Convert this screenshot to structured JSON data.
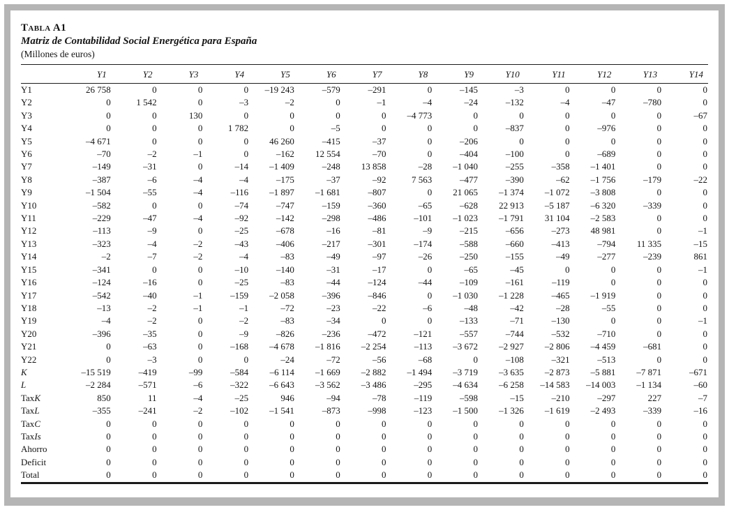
{
  "page": {
    "table_label": "Tabla A1",
    "title": "Matriz de Contabilidad Social Energética para España",
    "subtitle": "(Millones de euros)"
  },
  "table": {
    "columns": [
      "Y1",
      "Y2",
      "Y3",
      "Y4",
      "Y5",
      "Y6",
      "Y7",
      "Y8",
      "Y9",
      "Y10",
      "Y11",
      "Y12",
      "Y13",
      "Y14"
    ],
    "rows": [
      {
        "label": "Y1",
        "label_it": "",
        "values": [
          "26 758",
          "0",
          "0",
          "0",
          "–19 243",
          "–579",
          "–291",
          "0",
          "–145",
          "–3",
          "0",
          "0",
          "0",
          "0"
        ]
      },
      {
        "label": "Y2",
        "label_it": "",
        "values": [
          "0",
          "1 542",
          "0",
          "–3",
          "–2",
          "0",
          "–1",
          "–4",
          "–24",
          "–132",
          "–4",
          "–47",
          "–780",
          "0"
        ]
      },
      {
        "label": "Y3",
        "label_it": "",
        "values": [
          "0",
          "0",
          "130",
          "0",
          "0",
          "0",
          "0",
          "–4 773",
          "0",
          "0",
          "0",
          "0",
          "0",
          "–67"
        ]
      },
      {
        "label": "Y4",
        "label_it": "",
        "values": [
          "0",
          "0",
          "0",
          "1 782",
          "0",
          "–5",
          "0",
          "0",
          "0",
          "–837",
          "0",
          "–976",
          "0",
          "0"
        ]
      },
      {
        "label": "Y5",
        "label_it": "",
        "values": [
          "–4 671",
          "0",
          "0",
          "0",
          "46 260",
          "–415",
          "–37",
          "0",
          "–206",
          "0",
          "0",
          "0",
          "0",
          "0"
        ]
      },
      {
        "label": "Y6",
        "label_it": "",
        "values": [
          "–70",
          "–2",
          "–1",
          "0",
          "–162",
          "12 554",
          "–70",
          "0",
          "–404",
          "–100",
          "0",
          "–689",
          "0",
          "0"
        ]
      },
      {
        "label": "Y7",
        "label_it": "",
        "values": [
          "–149",
          "–31",
          "0",
          "–14",
          "–1 409",
          "–248",
          "13 858",
          "–28",
          "–1 040",
          "–255",
          "–358",
          "–1 401",
          "0",
          "0"
        ]
      },
      {
        "label": "Y8",
        "label_it": "",
        "values": [
          "–387",
          "–6",
          "–4",
          "–4",
          "–175",
          "–37",
          "–92",
          "7 563",
          "–477",
          "–390",
          "–62",
          "–1 756",
          "–179",
          "–22"
        ]
      },
      {
        "label": "Y9",
        "label_it": "",
        "values": [
          "–1 504",
          "–55",
          "–4",
          "–116",
          "–1 897",
          "–1 681",
          "–807",
          "0",
          "21 065",
          "–1 374",
          "–1 072",
          "–3 808",
          "0",
          "0"
        ]
      },
      {
        "label": "Y10",
        "label_it": "",
        "values": [
          "–582",
          "0",
          "0",
          "–74",
          "–747",
          "–159",
          "–360",
          "–65",
          "–628",
          "22 913",
          "–5 187",
          "–6 320",
          "–339",
          "0"
        ]
      },
      {
        "label": "Y11",
        "label_it": "",
        "values": [
          "–229",
          "–47",
          "–4",
          "–92",
          "–142",
          "–298",
          "–486",
          "–101",
          "–1 023",
          "–1 791",
          "31 104",
          "–2 583",
          "0",
          "0"
        ]
      },
      {
        "label": "Y12",
        "label_it": "",
        "values": [
          "–113",
          "–9",
          "0",
          "–25",
          "–678",
          "–16",
          "–81",
          "–9",
          "–215",
          "–656",
          "–273",
          "48 981",
          "0",
          "–1"
        ]
      },
      {
        "label": "Y13",
        "label_it": "",
        "values": [
          "–323",
          "–4",
          "–2",
          "–43",
          "–406",
          "–217",
          "–301",
          "–174",
          "–588",
          "–660",
          "–413",
          "–794",
          "11 335",
          "–15"
        ]
      },
      {
        "label": "Y14",
        "label_it": "",
        "values": [
          "–2",
          "–7",
          "–2",
          "–4",
          "–83",
          "–49",
          "–97",
          "–26",
          "–250",
          "–155",
          "–49",
          "–277",
          "–239",
          "861"
        ]
      },
      {
        "label": "Y15",
        "label_it": "",
        "values": [
          "–341",
          "0",
          "0",
          "–10",
          "–140",
          "–31",
          "–17",
          "0",
          "–65",
          "–45",
          "0",
          "0",
          "0",
          "–1"
        ]
      },
      {
        "label": "Y16",
        "label_it": "",
        "values": [
          "–124",
          "–16",
          "0",
          "–25",
          "–83",
          "–44",
          "–124",
          "–44",
          "–109",
          "–161",
          "–119",
          "0",
          "0",
          "0"
        ]
      },
      {
        "label": "Y17",
        "label_it": "",
        "values": [
          "–542",
          "–40",
          "–1",
          "–159",
          "–2 058",
          "–396",
          "–846",
          "0",
          "–1 030",
          "–1 228",
          "–465",
          "–1 919",
          "0",
          "0"
        ]
      },
      {
        "label": "Y18",
        "label_it": "",
        "values": [
          "–13",
          "–2",
          "–1",
          "–1",
          "–72",
          "–23",
          "–22",
          "–6",
          "–48",
          "–42",
          "–28",
          "–55",
          "0",
          "0"
        ]
      },
      {
        "label": "Y19",
        "label_it": "",
        "values": [
          "–4",
          "–2",
          "0",
          "–2",
          "–83",
          "–34",
          "0",
          "0",
          "–133",
          "–71",
          "–130",
          "0",
          "0",
          "–1"
        ]
      },
      {
        "label": "Y20",
        "label_it": "",
        "values": [
          "–396",
          "–35",
          "0",
          "–9",
          "–826",
          "–236",
          "–472",
          "–121",
          "–557",
          "–744",
          "–532",
          "–710",
          "0",
          "0"
        ]
      },
      {
        "label": "Y21",
        "label_it": "",
        "values": [
          "0",
          "–63",
          "0",
          "–168",
          "–4 678",
          "–1 816",
          "–2 254",
          "–113",
          "–3 672",
          "–2 927",
          "–2 806",
          "–4 459",
          "–681",
          "0"
        ]
      },
      {
        "label": "Y22",
        "label_it": "",
        "values": [
          "0",
          "–3",
          "0",
          "0",
          "–24",
          "–72",
          "–56",
          "–68",
          "0",
          "–108",
          "–321",
          "–513",
          "0",
          "0"
        ]
      },
      {
        "label": "",
        "label_it": "K",
        "values": [
          "–15 519",
          "–419",
          "–99",
          "–584",
          "–6 114",
          "–1 669",
          "–2 882",
          "–1 494",
          "–3 719",
          "–3 635",
          "–2 873",
          "–5 881",
          "–7 871",
          "–671"
        ]
      },
      {
        "label": "",
        "label_it": "L",
        "values": [
          "–2 284",
          "–571",
          "–6",
          "–322",
          "–6 643",
          "–3 562",
          "–3 486",
          "–295",
          "–4 634",
          "–6 258",
          "–14 583",
          "–14 003",
          "–1 134",
          "–60"
        ]
      },
      {
        "label": "Tax",
        "label_it": "K",
        "values": [
          "850",
          "11",
          "–4",
          "–25",
          "946",
          "–94",
          "–78",
          "–119",
          "–598",
          "–15",
          "–210",
          "–297",
          "227",
          "–7"
        ]
      },
      {
        "label": "Tax",
        "label_it": "L",
        "values": [
          "–355",
          "–241",
          "–2",
          "–102",
          "–1 541",
          "–873",
          "–998",
          "–123",
          "–1 500",
          "–1 326",
          "–1 619",
          "–2 493",
          "–339",
          "–16"
        ]
      },
      {
        "label": "Tax",
        "label_it": "C",
        "values": [
          "0",
          "0",
          "0",
          "0",
          "0",
          "0",
          "0",
          "0",
          "0",
          "0",
          "0",
          "0",
          "0",
          "0"
        ]
      },
      {
        "label": "Tax",
        "label_it": "Is",
        "values": [
          "0",
          "0",
          "0",
          "0",
          "0",
          "0",
          "0",
          "0",
          "0",
          "0",
          "0",
          "0",
          "0",
          "0"
        ]
      },
      {
        "label": "Ahorro",
        "label_it": "",
        "values": [
          "0",
          "0",
          "0",
          "0",
          "0",
          "0",
          "0",
          "0",
          "0",
          "0",
          "0",
          "0",
          "0",
          "0"
        ]
      },
      {
        "label": "Deficit",
        "label_it": "",
        "values": [
          "0",
          "0",
          "0",
          "0",
          "0",
          "0",
          "0",
          "0",
          "0",
          "0",
          "0",
          "0",
          "0",
          "0"
        ]
      },
      {
        "label": "Total",
        "label_it": "",
        "values": [
          "0",
          "0",
          "0",
          "0",
          "0",
          "0",
          "0",
          "0",
          "0",
          "0",
          "0",
          "0",
          "0",
          "0"
        ]
      }
    ]
  }
}
